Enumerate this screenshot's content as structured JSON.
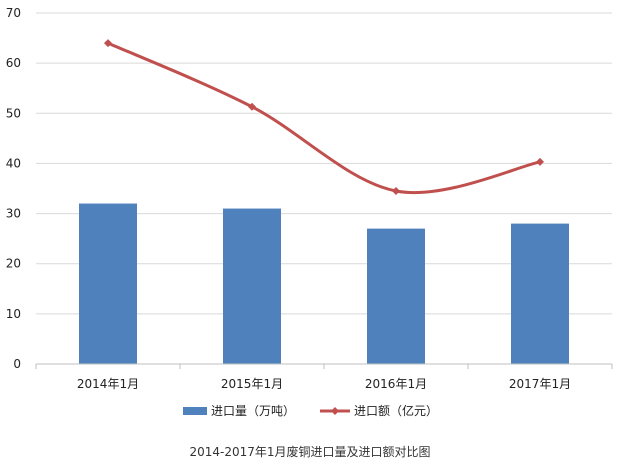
{
  "chart_data": {
    "type": "bar",
    "categories": [
      "2014年1月",
      "2015年1月",
      "2016年1月",
      "2017年1月"
    ],
    "series": [
      {
        "name": "进口量（万吨）",
        "type": "bar",
        "color": "#4F81BD",
        "values": [
          32,
          31,
          27,
          28
        ]
      },
      {
        "name": "进口额（亿元）",
        "type": "line",
        "color": "#C0504D",
        "values": [
          64,
          51.3,
          34.5,
          40.3
        ]
      }
    ],
    "ylim": [
      0,
      70
    ],
    "yticks": [
      0,
      10,
      20,
      30,
      40,
      50,
      60,
      70
    ],
    "grid": true,
    "legend": "bottom",
    "caption": "2014-2017年1月废铜进口量及进口额对比图"
  }
}
